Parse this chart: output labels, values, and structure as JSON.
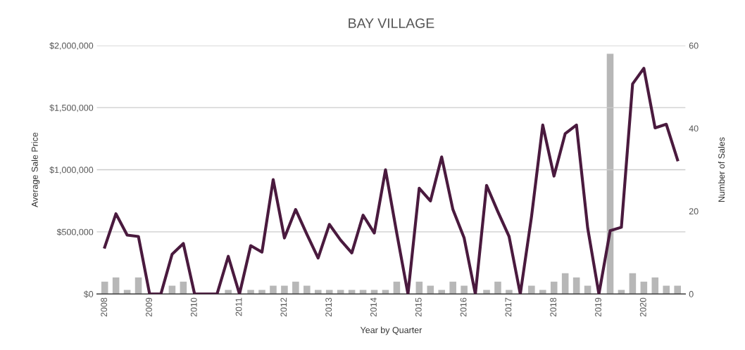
{
  "chart_data": {
    "type": "line",
    "title": "BAY VILLAGE",
    "xlabel": "Year by Quarter",
    "ylabel": "Average Sale Price",
    "y2label": "Number of Sales",
    "categories": [
      "2008",
      null,
      null,
      null,
      "2009",
      null,
      null,
      null,
      "2010",
      null,
      null,
      null,
      "2011",
      null,
      null,
      null,
      "2012",
      null,
      null,
      null,
      "2013",
      null,
      null,
      null,
      "2014",
      null,
      null,
      null,
      "2015",
      null,
      null,
      null,
      "2016",
      null,
      null,
      null,
      "2017",
      null,
      null,
      null,
      "2018",
      null,
      null,
      null,
      "2019",
      null,
      null,
      null,
      "2020",
      null,
      null,
      null
    ],
    "series": [
      {
        "type": "bar",
        "axis": "y2",
        "color": "#b7b7b7",
        "values": [
          3,
          4,
          1,
          4,
          0,
          0,
          2,
          3,
          0,
          0,
          0,
          1,
          0,
          1,
          1,
          2,
          2,
          3,
          2,
          1,
          1,
          1,
          1,
          1,
          1,
          1,
          3,
          0,
          3,
          2,
          1,
          3,
          2,
          0,
          1,
          3,
          1,
          0,
          2,
          1,
          3,
          5,
          4,
          2,
          0,
          58,
          1,
          5,
          3,
          4,
          2,
          2
        ]
      },
      {
        "color": "#4a1a3e",
        "values": [
          377000,
          646000,
          474000,
          463000,
          0,
          0,
          320000,
          406000,
          0,
          0,
          0,
          303000,
          0,
          389000,
          337000,
          920000,
          451000,
          680000,
          480000,
          290000,
          560000,
          434000,
          331000,
          634000,
          491000,
          1000000,
          491000,
          0,
          851000,
          749000,
          1103000,
          680000,
          451000,
          0,
          874000,
          663000,
          463000,
          0,
          623000,
          1360000,
          949000,
          1291000,
          1360000,
          531000,
          0,
          509000,
          537000,
          1691000,
          1817000,
          1337000,
          1366000,
          1080000
        ]
      }
    ],
    "ylim": [
      0,
      2000000
    ],
    "yticks": [
      {
        "value": 0,
        "label": "$0"
      },
      {
        "value": 500000,
        "label": "$500,000"
      },
      {
        "value": 1000000,
        "label": "$1,000,000"
      },
      {
        "value": 1500000,
        "label": "$1,500,000"
      },
      {
        "value": 2000000,
        "label": "$2,000,000"
      }
    ],
    "y2lim": [
      0,
      60
    ],
    "y2ticks": [
      0,
      20,
      40,
      60
    ],
    "grid": "y",
    "legend": false,
    "marker": "none",
    "line_style": "solid"
  }
}
